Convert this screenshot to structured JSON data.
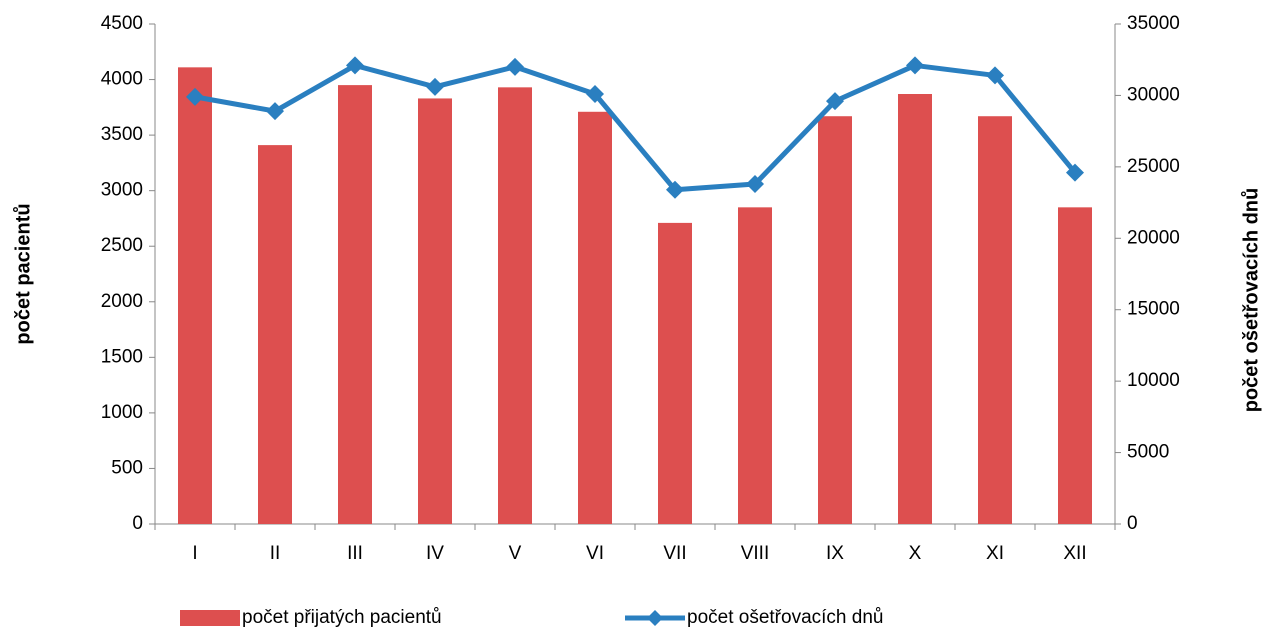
{
  "chart_data": {
    "type": "bar-line",
    "categories": [
      "I",
      "II",
      "III",
      "IV",
      "V",
      "VI",
      "VII",
      "VIII",
      "IX",
      "X",
      "XI",
      "XII"
    ],
    "series": [
      {
        "name": "počet přijatých pacientů",
        "type": "bar",
        "color": "#dd4f4f",
        "values": [
          4110,
          3410,
          3950,
          3830,
          3930,
          3710,
          2710,
          2850,
          3670,
          3870,
          3670,
          2850
        ]
      },
      {
        "name": "počet ošetřovacích dnů",
        "type": "line",
        "axis": "y2",
        "color": "#2a7fc0",
        "values": [
          29900,
          28900,
          32100,
          30600,
          32000,
          30100,
          23400,
          23800,
          29600,
          32100,
          31400,
          24600
        ]
      }
    ],
    "ylabel": "počet pacientů",
    "y2label": "počet ošetřovacích dnů",
    "ylim": [
      0,
      4500
    ],
    "yticks": [
      0,
      500,
      1000,
      1500,
      2000,
      2500,
      3000,
      3500,
      4000,
      4500
    ],
    "y2lim": [
      0,
      35000
    ],
    "y2ticks": [
      0,
      5000,
      10000,
      15000,
      20000,
      25000,
      30000,
      35000
    ],
    "legend": "bottom"
  }
}
